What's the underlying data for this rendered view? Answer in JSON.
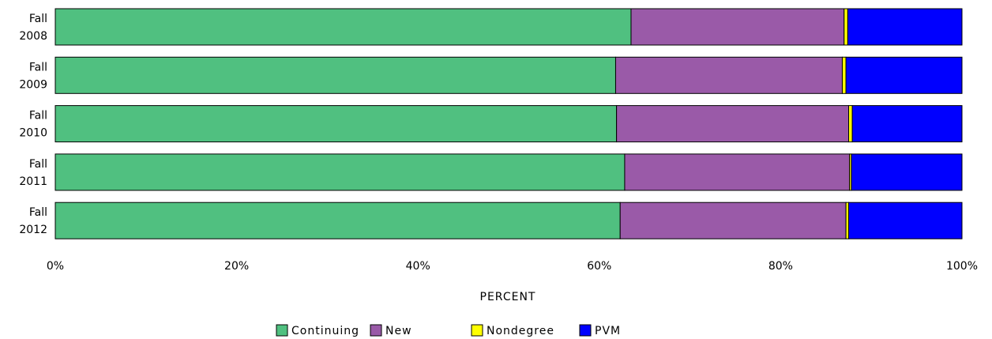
{
  "chart_data": {
    "type": "bar",
    "orientation": "horizontal",
    "stacked": true,
    "percent_stacked": true,
    "categories": [
      [
        "Fall",
        "2008"
      ],
      [
        "Fall",
        "2009"
      ],
      [
        "Fall",
        "2010"
      ],
      [
        "Fall",
        "2011"
      ],
      [
        "Fall",
        "2012"
      ]
    ],
    "series": [
      {
        "name": "Continuing",
        "color": "#50C080",
        "values": [
          63.5,
          61.8,
          61.9,
          62.8,
          62.3
        ]
      },
      {
        "name": "New",
        "color": "#9A5AA8",
        "values": [
          23.5,
          25.0,
          25.6,
          24.8,
          24.9
        ]
      },
      {
        "name": "Nondegree",
        "color": "#FFFF00",
        "values": [
          0.4,
          0.4,
          0.4,
          0.2,
          0.3
        ]
      },
      {
        "name": "PVM",
        "color": "#0000FF",
        "values": [
          12.6,
          12.8,
          12.1,
          12.2,
          12.5
        ]
      }
    ],
    "xlabel": "PERCENT",
    "ylabel": "",
    "xlim": [
      0,
      100
    ],
    "xticks": [
      "0%",
      "20%",
      "40%",
      "60%",
      "80%",
      "100%"
    ],
    "xtick_values": [
      0,
      20,
      40,
      60,
      80,
      100
    ],
    "grid": false,
    "legend_position": "bottom"
  }
}
